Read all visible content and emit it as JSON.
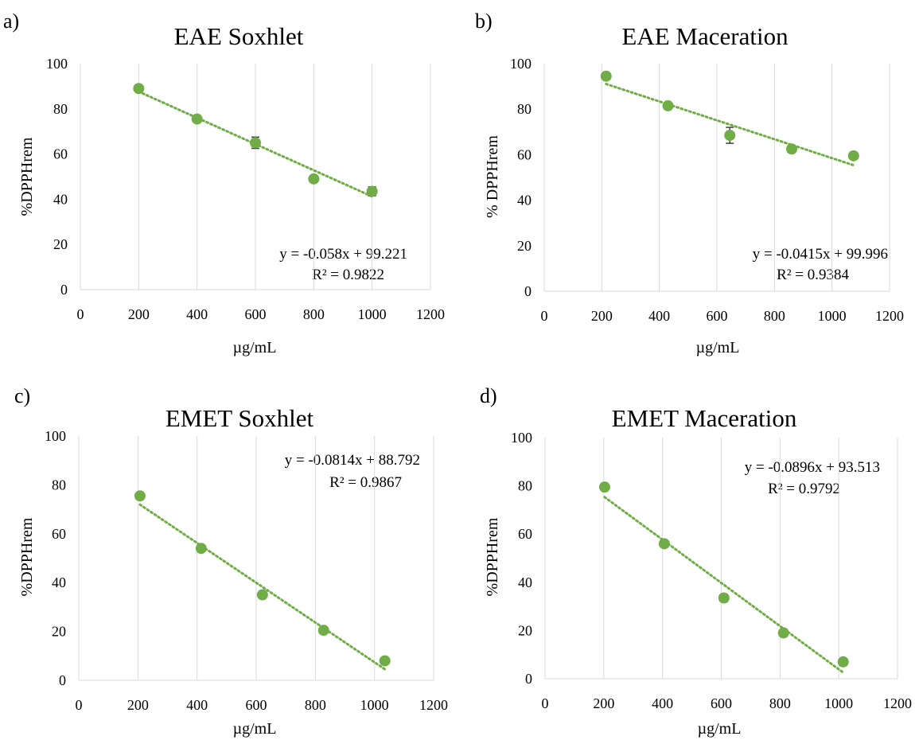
{
  "colors": {
    "marker": "#70ad47",
    "trendline": "#70ad47",
    "gridline": "#d9d9d9",
    "errorbar": "#404040",
    "text": "#000000"
  },
  "chart_data": [
    {
      "panel": "a)",
      "type": "scatter",
      "title": "EAE Soxhlet",
      "xlabel": "µg/mL",
      "ylabel": "%DPPHrem",
      "xlim": [
        0,
        1200
      ],
      "ylim": [
        0,
        100
      ],
      "xticks": [
        0,
        200,
        400,
        600,
        800,
        1000,
        1200
      ],
      "yticks": [
        0,
        20,
        40,
        60,
        80,
        100
      ],
      "grid": "vertical",
      "points": [
        {
          "x": 200,
          "y": 89,
          "err": 0.8
        },
        {
          "x": 400,
          "y": 75.5,
          "err": 0.8
        },
        {
          "x": 600,
          "y": 65,
          "err": 2.5
        },
        {
          "x": 800,
          "y": 49,
          "err": 0.8
        },
        {
          "x": 1000,
          "y": 43.5,
          "err": 2
        }
      ],
      "trendline": {
        "slope": -0.058,
        "intercept": 99.221,
        "x_range": [
          200,
          1000
        ]
      },
      "equation": "y = -0.058x + 99.221",
      "r2": "R² = 0.9822",
      "equation_position": "lower-right"
    },
    {
      "panel": "b)",
      "type": "scatter",
      "title": "EAE Maceration",
      "xlabel": "µg/mL",
      "ylabel": "% DPPHrem",
      "xlim": [
        0,
        1200
      ],
      "ylim": [
        0,
        100
      ],
      "xticks": [
        0,
        200,
        400,
        600,
        800,
        1000,
        1200
      ],
      "yticks": [
        0,
        20,
        40,
        60,
        80,
        100
      ],
      "grid": "vertical",
      "points": [
        {
          "x": 215,
          "y": 94.5,
          "err": 0.8
        },
        {
          "x": 430,
          "y": 81.5,
          "err": 0.8
        },
        {
          "x": 645,
          "y": 68.5,
          "err": 3.5
        },
        {
          "x": 860,
          "y": 62.5,
          "err": 0.8
        },
        {
          "x": 1075,
          "y": 59.5,
          "err": 0.8
        }
      ],
      "trendline": {
        "slope": -0.0415,
        "intercept": 99.996,
        "x_range": [
          215,
          1075
        ]
      },
      "equation": "y = -0.0415x + 99.996",
      "r2": "R² = 0.9384",
      "equation_position": "lower-right"
    },
    {
      "panel": "c)",
      "type": "scatter",
      "title": "EMET Soxhlet",
      "xlabel": "µg/mL",
      "ylabel": "%DPPHrem",
      "xlim": [
        0,
        1200
      ],
      "ylim": [
        0,
        100
      ],
      "xticks": [
        0,
        200,
        400,
        600,
        800,
        1000,
        1200
      ],
      "yticks": [
        0,
        20,
        40,
        60,
        80,
        100
      ],
      "grid": "vertical",
      "points": [
        {
          "x": 207,
          "y": 75.5,
          "err": 0.8
        },
        {
          "x": 414,
          "y": 54,
          "err": 0.8
        },
        {
          "x": 621,
          "y": 35,
          "err": 0.8
        },
        {
          "x": 828,
          "y": 20.5,
          "err": 0.8
        },
        {
          "x": 1035,
          "y": 8,
          "err": 0.8
        }
      ],
      "trendline": {
        "slope": -0.0814,
        "intercept": 88.792,
        "x_range": [
          207,
          1035
        ]
      },
      "equation": "y = -0.0814x + 88.792",
      "r2": "R² = 0.9867",
      "equation_position": "upper-right"
    },
    {
      "panel": "d)",
      "type": "scatter",
      "title": "EMET Maceration",
      "xlabel": "µg/mL",
      "ylabel": "%DPPHrem",
      "xlim": [
        0,
        1200
      ],
      "ylim": [
        0,
        100
      ],
      "xticks": [
        0,
        200,
        400,
        600,
        800,
        1000,
        1200
      ],
      "yticks": [
        0,
        20,
        40,
        60,
        80,
        100
      ],
      "grid": "vertical",
      "points": [
        {
          "x": 203,
          "y": 79.5,
          "err": 0.8
        },
        {
          "x": 406,
          "y": 56,
          "err": 0.8
        },
        {
          "x": 609,
          "y": 33.5,
          "err": 1.5
        },
        {
          "x": 812,
          "y": 19,
          "err": 0.8
        },
        {
          "x": 1015,
          "y": 7,
          "err": 0.8
        }
      ],
      "trendline": {
        "slope": -0.0896,
        "intercept": 93.513,
        "x_range": [
          203,
          1015
        ]
      },
      "equation": "y = -0.0896x + 93.513",
      "r2": "R² = 0.9792",
      "equation_position": "upper-right"
    }
  ]
}
